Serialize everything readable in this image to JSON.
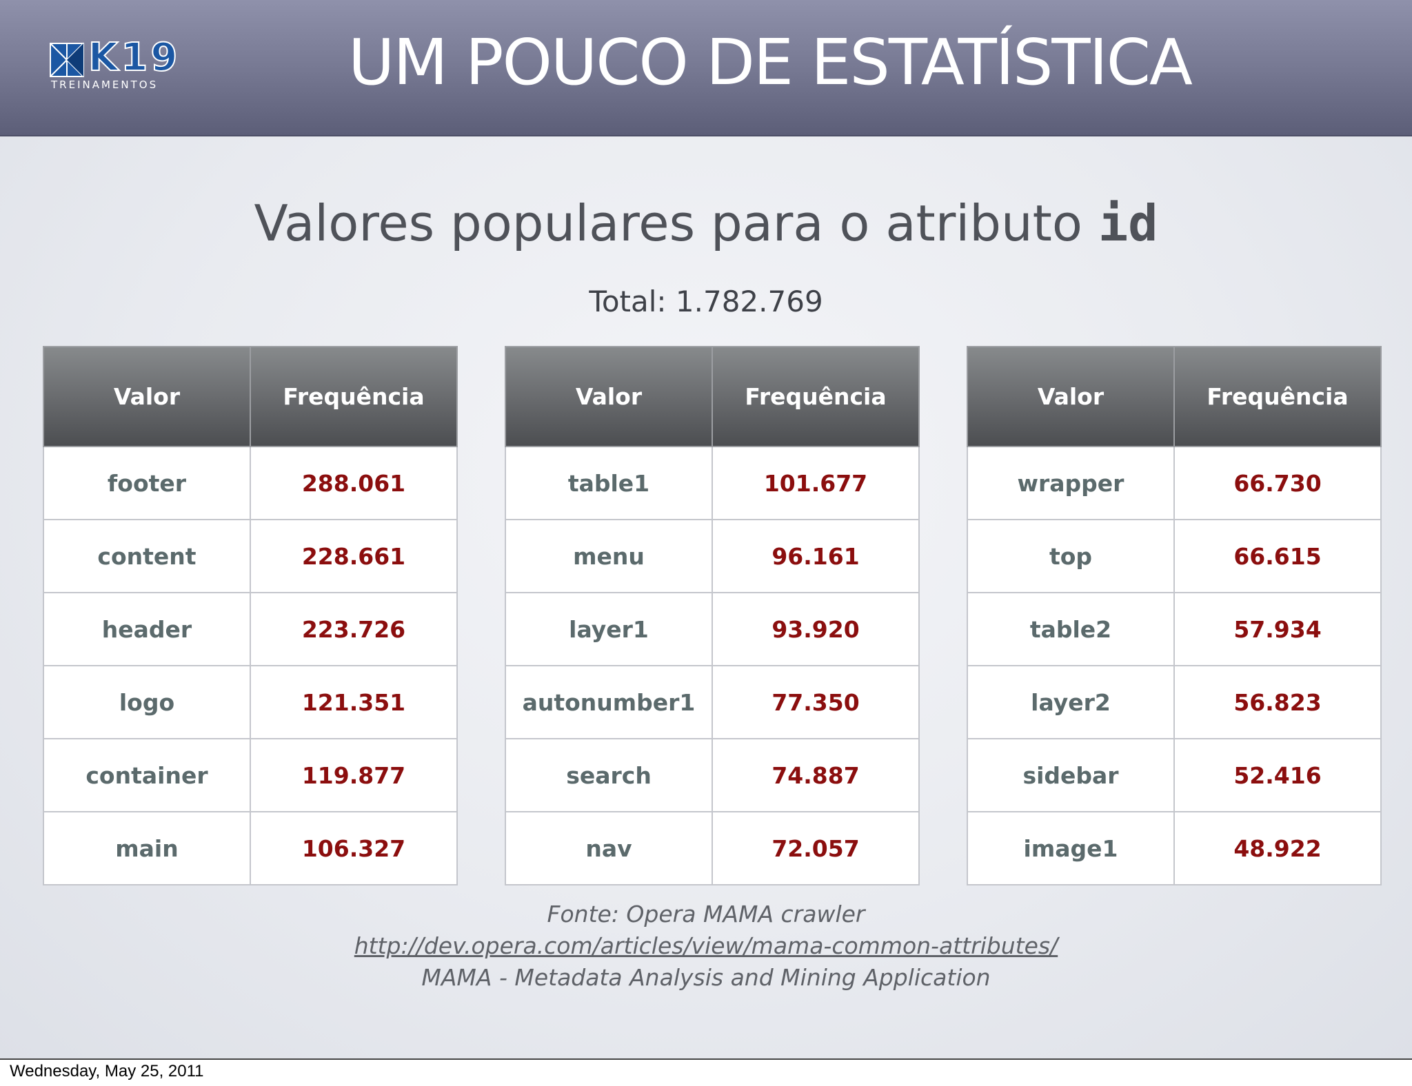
{
  "header": {
    "logo_text": "K19",
    "logo_subtext": "TREINAMENTOS",
    "title": "UM POUCO DE ESTATÍSTICA"
  },
  "subtitle": {
    "text": "Valores populares para o atributo ",
    "code": "id"
  },
  "total": "Total: 1.782.769",
  "tables": [
    {
      "col_value": "Valor",
      "col_freq": "Frequência",
      "rows": [
        {
          "value": "footer",
          "freq": "288.061"
        },
        {
          "value": "content",
          "freq": "228.661"
        },
        {
          "value": "header",
          "freq": "223.726"
        },
        {
          "value": "logo",
          "freq": "121.351"
        },
        {
          "value": "container",
          "freq": "119.877"
        },
        {
          "value": "main",
          "freq": "106.327"
        }
      ]
    },
    {
      "col_value": "Valor",
      "col_freq": "Frequência",
      "rows": [
        {
          "value": "table1",
          "freq": "101.677"
        },
        {
          "value": "menu",
          "freq": "96.161"
        },
        {
          "value": "layer1",
          "freq": "93.920"
        },
        {
          "value": "autonumber1",
          "freq": "77.350"
        },
        {
          "value": "search",
          "freq": "74.887"
        },
        {
          "value": "nav",
          "freq": "72.057"
        }
      ]
    },
    {
      "col_value": "Valor",
      "col_freq": "Frequência",
      "rows": [
        {
          "value": "wrapper",
          "freq": "66.730"
        },
        {
          "value": "top",
          "freq": "66.615"
        },
        {
          "value": "table2",
          "freq": "57.934"
        },
        {
          "value": "layer2",
          "freq": "56.823"
        },
        {
          "value": "sidebar",
          "freq": "52.416"
        },
        {
          "value": "image1",
          "freq": "48.922"
        }
      ]
    }
  ],
  "source": {
    "line": "Fonte: Opera MAMA crawler",
    "link": "http://dev.opera.com/articles/view/mama-common-attributes/",
    "description": "MAMA - Metadata Analysis and Mining Application"
  },
  "footer": {
    "date": "Wednesday, May 25, 2011"
  },
  "colors": {
    "header_band": "#777993",
    "table_header": "#6a6c6f",
    "value_text": "#5b6a6c",
    "frequency_text": "#8b0e0e",
    "logo_blue": "#1b57a3"
  }
}
